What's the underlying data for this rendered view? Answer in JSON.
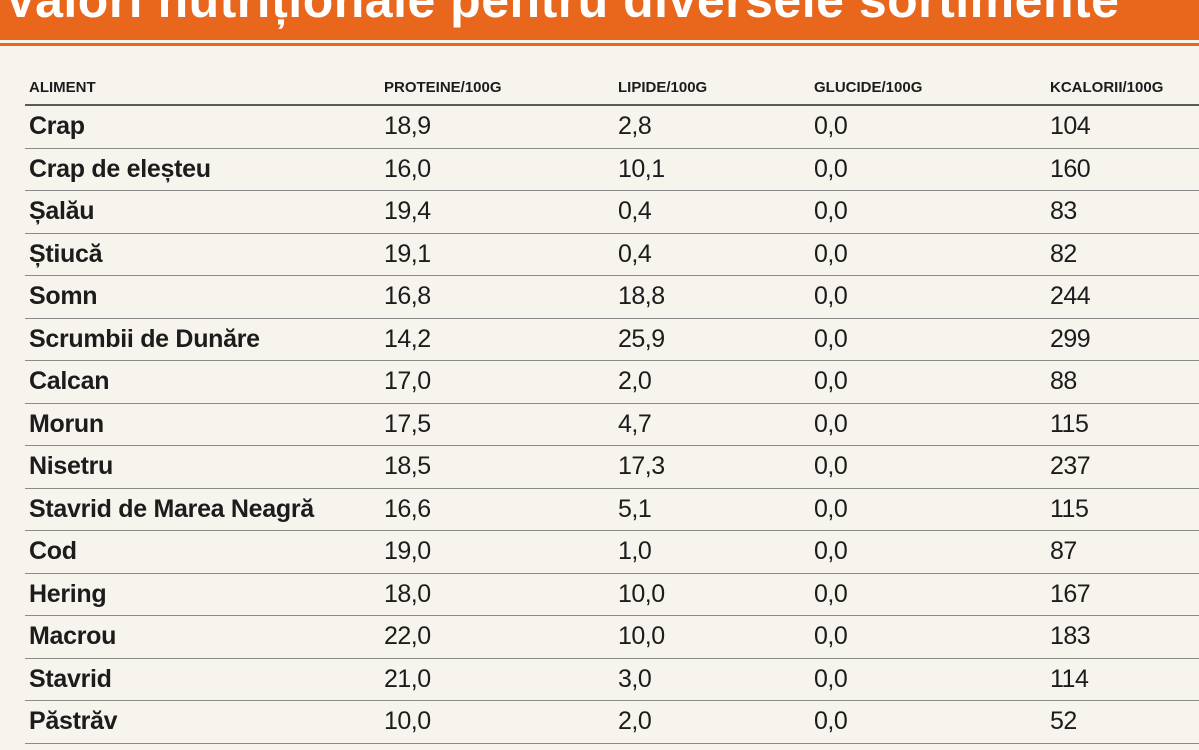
{
  "header": {
    "title": "Valori nutriționale pentru diversele sortimente"
  },
  "table": {
    "columns": [
      "ALIMENT",
      "PROTEINE/100G",
      "LIPIDE/100G",
      "GLUCIDE/100G",
      "KCALORII/100G"
    ],
    "rows": [
      [
        "Crap",
        "18,9",
        "2,8",
        "0,0",
        "104"
      ],
      [
        "Crap de eleșteu",
        "16,0",
        "10,1",
        "0,0",
        "160"
      ],
      [
        "Șalău",
        "19,4",
        "0,4",
        "0,0",
        "83"
      ],
      [
        "Știucă",
        "19,1",
        "0,4",
        "0,0",
        "82"
      ],
      [
        "Somn",
        "16,8",
        "18,8",
        "0,0",
        "244"
      ],
      [
        "Scrumbii de Dunăre",
        "14,2",
        "25,9",
        "0,0",
        "299"
      ],
      [
        "Calcan",
        "17,0",
        "2,0",
        "0,0",
        "88"
      ],
      [
        "Morun",
        "17,5",
        "4,7",
        "0,0",
        "115"
      ],
      [
        "Nisetru",
        "18,5",
        "17,3",
        "0,0",
        "237"
      ],
      [
        "Stavrid de Marea Neagră",
        "16,6",
        "5,1",
        "0,0",
        "115"
      ],
      [
        "Cod",
        "19,0",
        "1,0",
        "0,0",
        "87"
      ],
      [
        "Hering",
        "18,0",
        "10,0",
        "0,0",
        "167"
      ],
      [
        "Macrou",
        "22,0",
        "10,0",
        "0,0",
        "183"
      ],
      [
        "Stavrid",
        "21,0",
        "3,0",
        "0,0",
        "114"
      ],
      [
        "Păstrăv",
        "10,0",
        "2,0",
        "0,0",
        "52"
      ]
    ]
  },
  "colors": {
    "accent": "#e8671c",
    "background": "#f7f4ee",
    "text": "#1c1c1c"
  }
}
